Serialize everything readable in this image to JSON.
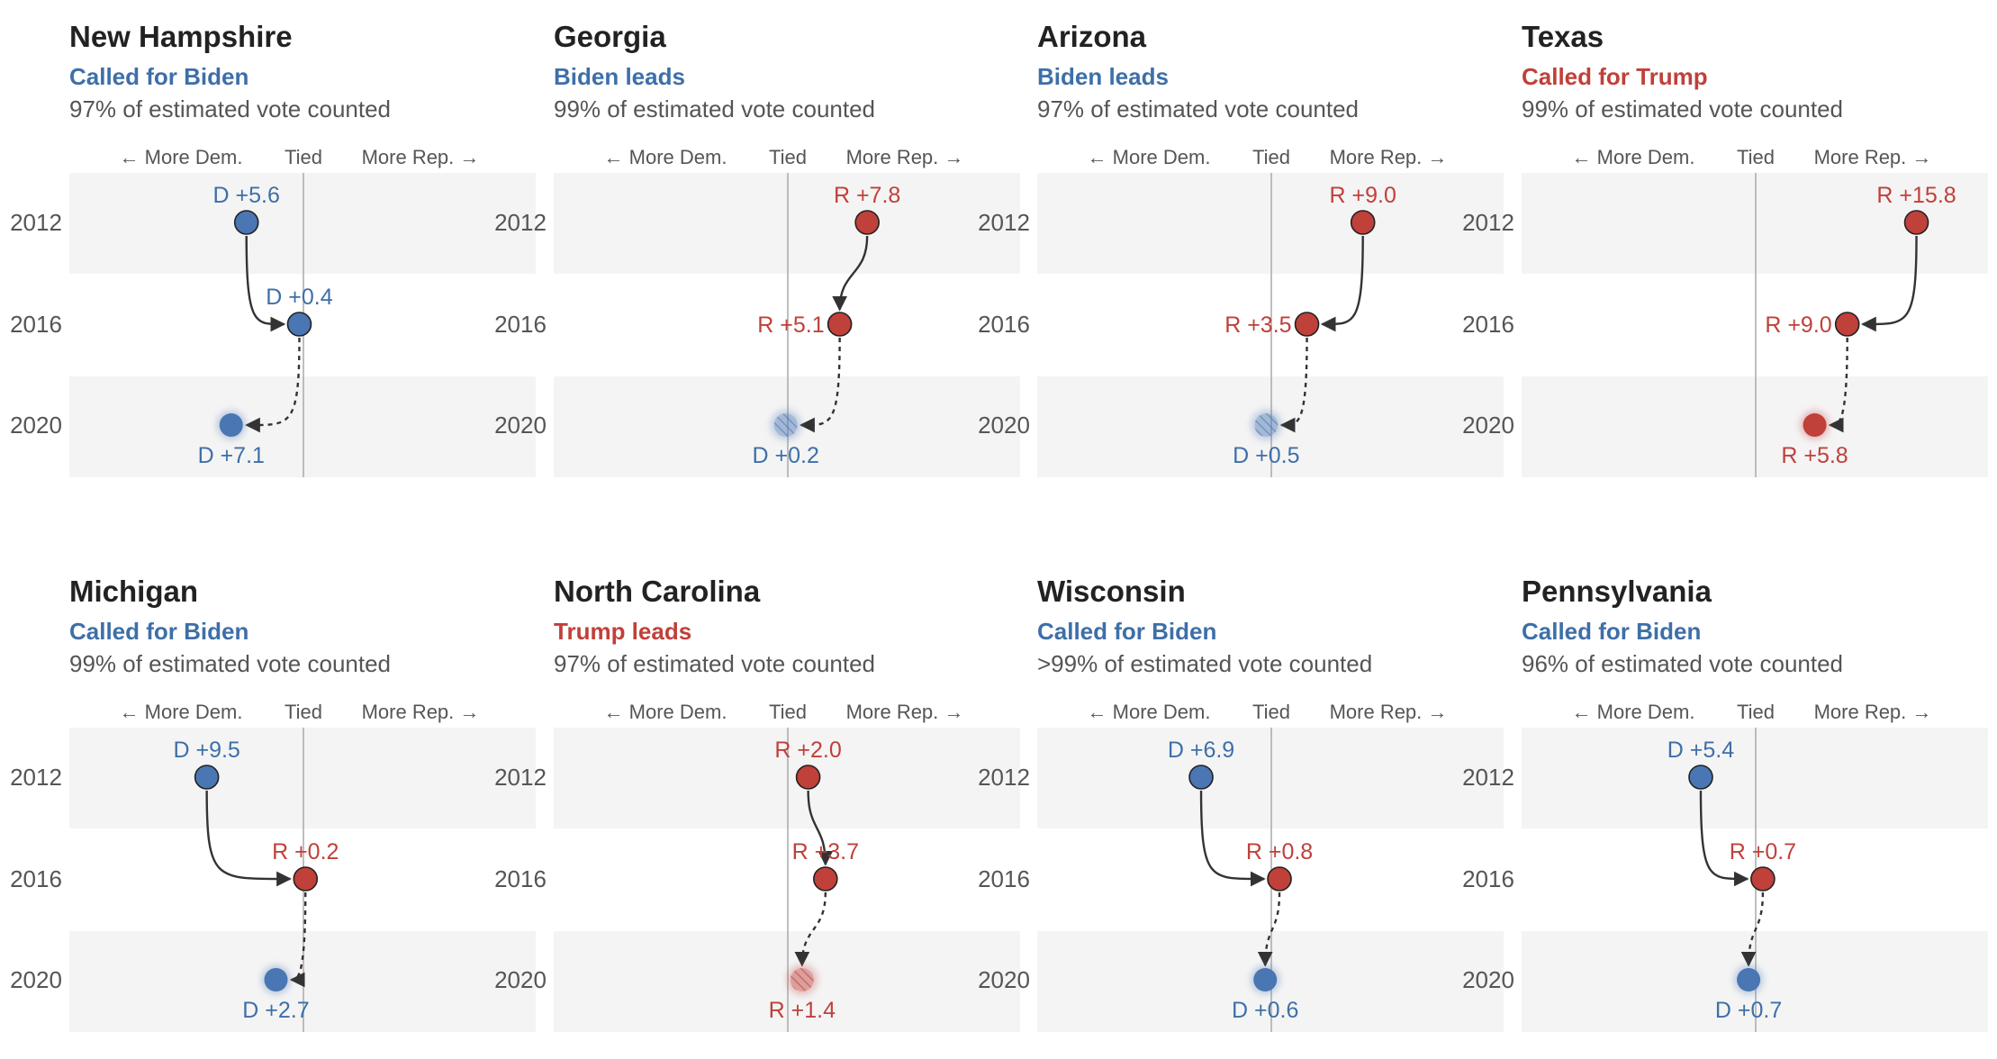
{
  "colors": {
    "dem": "#4a76b3",
    "dem_text": "#3e6fa8",
    "rep": "#c0403a",
    "rep_text": "#c0403a",
    "band": "#f4f4f4",
    "tied_line": "#aaaaaa",
    "arrow": "#333333"
  },
  "axis_labels": {
    "more_dem": "← More Dem.",
    "tied": "Tied",
    "more_rep": "More Rep. →"
  },
  "chart_data": [
    {
      "type": "scatter",
      "title": "New Hampshire",
      "status": "Called for Biden",
      "status_party": "D",
      "counted": "97% of estimated vote counted",
      "years": [
        "2012",
        "2016",
        "2020"
      ],
      "series": [
        {
          "year": "2012",
          "party": "D",
          "margin": 5.6,
          "label": "D +5.6",
          "style": "final"
        },
        {
          "year": "2016",
          "party": "D",
          "margin": 0.4,
          "label": "D +0.4",
          "style": "final"
        },
        {
          "year": "2020",
          "party": "D",
          "margin": 7.1,
          "label": "D +7.1",
          "style": "called"
        }
      ]
    },
    {
      "type": "scatter",
      "title": "Georgia",
      "status": "Biden leads",
      "status_party": "D",
      "counted": "99% of estimated vote counted",
      "years": [
        "2012",
        "2016",
        "2020"
      ],
      "series": [
        {
          "year": "2012",
          "party": "R",
          "margin": 7.8,
          "label": "R +7.8",
          "style": "final"
        },
        {
          "year": "2016",
          "party": "R",
          "margin": 5.1,
          "label": "R +5.1",
          "style": "final"
        },
        {
          "year": "2020",
          "party": "D",
          "margin": 0.2,
          "label": "D +0.2",
          "style": "leading"
        }
      ]
    },
    {
      "type": "scatter",
      "title": "Arizona",
      "status": "Biden leads",
      "status_party": "D",
      "counted": "97% of estimated vote counted",
      "years": [
        "2012",
        "2016",
        "2020"
      ],
      "series": [
        {
          "year": "2012",
          "party": "R",
          "margin": 9.0,
          "label": "R +9.0",
          "style": "final"
        },
        {
          "year": "2016",
          "party": "R",
          "margin": 3.5,
          "label": "R +3.5",
          "style": "final"
        },
        {
          "year": "2020",
          "party": "D",
          "margin": 0.5,
          "label": "D +0.5",
          "style": "leading"
        }
      ]
    },
    {
      "type": "scatter",
      "title": "Texas",
      "status": "Called for Trump",
      "status_party": "R",
      "counted": "99% of estimated vote counted",
      "years": [
        "2012",
        "2016",
        "2020"
      ],
      "series": [
        {
          "year": "2012",
          "party": "R",
          "margin": 15.8,
          "label": "R +15.8",
          "style": "final"
        },
        {
          "year": "2016",
          "party": "R",
          "margin": 9.0,
          "label": "R +9.0",
          "style": "final"
        },
        {
          "year": "2020",
          "party": "R",
          "margin": 5.8,
          "label": "R +5.8",
          "style": "called"
        }
      ]
    },
    {
      "type": "scatter",
      "title": "Michigan",
      "status": "Called for Biden",
      "status_party": "D",
      "counted": "99% of estimated vote counted",
      "years": [
        "2012",
        "2016",
        "2020"
      ],
      "series": [
        {
          "year": "2012",
          "party": "D",
          "margin": 9.5,
          "label": "D +9.5",
          "style": "final"
        },
        {
          "year": "2016",
          "party": "R",
          "margin": 0.2,
          "label": "R +0.2",
          "style": "final"
        },
        {
          "year": "2020",
          "party": "D",
          "margin": 2.7,
          "label": "D +2.7",
          "style": "called"
        }
      ]
    },
    {
      "type": "scatter",
      "title": "North Carolina",
      "status": "Trump leads",
      "status_party": "R",
      "counted": "97% of estimated vote counted",
      "years": [
        "2012",
        "2016",
        "2020"
      ],
      "series": [
        {
          "year": "2012",
          "party": "R",
          "margin": 2.0,
          "label": "R +2.0",
          "style": "final"
        },
        {
          "year": "2016",
          "party": "R",
          "margin": 3.7,
          "label": "R +3.7",
          "style": "final"
        },
        {
          "year": "2020",
          "party": "R",
          "margin": 1.4,
          "label": "R +1.4",
          "style": "leading"
        }
      ]
    },
    {
      "type": "scatter",
      "title": "Wisconsin",
      "status": "Called for Biden",
      "status_party": "D",
      "counted": ">99% of estimated vote counted",
      "years": [
        "2012",
        "2016",
        "2020"
      ],
      "series": [
        {
          "year": "2012",
          "party": "D",
          "margin": 6.9,
          "label": "D +6.9",
          "style": "final"
        },
        {
          "year": "2016",
          "party": "R",
          "margin": 0.8,
          "label": "R +0.8",
          "style": "final"
        },
        {
          "year": "2020",
          "party": "D",
          "margin": 0.6,
          "label": "D +0.6",
          "style": "called"
        }
      ]
    },
    {
      "type": "scatter",
      "title": "Pennsylvania",
      "status": "Called for Biden",
      "status_party": "D",
      "counted": "96% of estimated vote counted",
      "years": [
        "2012",
        "2016",
        "2020"
      ],
      "series": [
        {
          "year": "2012",
          "party": "D",
          "margin": 5.4,
          "label": "D +5.4",
          "style": "final"
        },
        {
          "year": "2016",
          "party": "R",
          "margin": 0.7,
          "label": "R +0.7",
          "style": "final"
        },
        {
          "year": "2020",
          "party": "D",
          "margin": 0.7,
          "label": "D +0.7",
          "style": "called"
        }
      ]
    }
  ]
}
